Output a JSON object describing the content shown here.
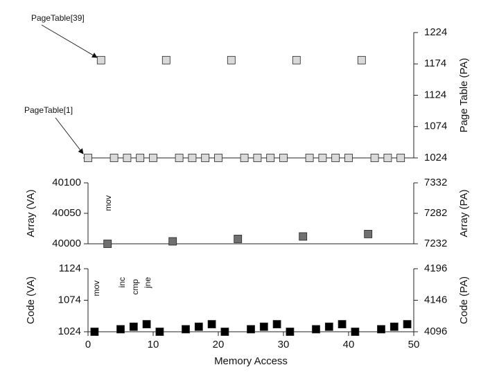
{
  "chart_data": [
    {
      "type": "scatter",
      "y2_label": "Page Table (PA)",
      "x": [
        0,
        2,
        4,
        6,
        8,
        10,
        12,
        14,
        16,
        18,
        20,
        22,
        24,
        26,
        28,
        30,
        32,
        34,
        36,
        38,
        40,
        42,
        44,
        46,
        48
      ],
      "series": [
        {
          "color": "#d9d9d9",
          "axis": "y2",
          "values": [
            1024,
            1180,
            1024,
            1024,
            1024,
            1024,
            1180,
            1024,
            1024,
            1024,
            1024,
            1180,
            1024,
            1024,
            1024,
            1024,
            1180,
            1024,
            1024,
            1024,
            1024,
            1180,
            1024,
            1024,
            1024
          ]
        }
      ],
      "xlim": [
        0,
        50
      ],
      "y2lim": [
        1024,
        1224
      ],
      "y2ticks": [
        1024,
        1074,
        1124,
        1174,
        1224
      ],
      "annotations": [
        "PageTable[39]",
        "PageTable[1]"
      ]
    },
    {
      "type": "scatter",
      "y_label": "Array (VA)",
      "y2_label": "Array (PA)",
      "x": [
        3,
        13,
        23,
        33,
        43
      ],
      "series": [
        {
          "color": "#707070",
          "values": [
            40000,
            40004,
            40008,
            40012,
            40016
          ]
        }
      ],
      "xlim": [
        0,
        50
      ],
      "ylim": [
        40000,
        40100
      ],
      "yticks": [
        40000,
        40050,
        40100
      ],
      "y2lim": [
        7232,
        7332
      ],
      "y2ticks": [
        7232,
        7282,
        7332
      ],
      "annotations": [
        "mov"
      ]
    },
    {
      "type": "scatter",
      "y_label": "Code (VA)",
      "y2_label": "Code (PA)",
      "x_label": "Memory Access",
      "x": [
        1,
        5,
        7,
        9,
        11,
        15,
        17,
        19,
        21,
        25,
        27,
        29,
        31,
        35,
        37,
        39,
        41,
        45,
        47,
        49
      ],
      "series": [
        {
          "color": "#000000",
          "values": [
            1024,
            1028,
            1032,
            1036,
            1024,
            1028,
            1032,
            1036,
            1024,
            1028,
            1032,
            1036,
            1024,
            1028,
            1032,
            1036,
            1024,
            1028,
            1032,
            1036
          ]
        }
      ],
      "xlim": [
        0,
        50
      ],
      "xticks": [
        0,
        10,
        20,
        30,
        40,
        50
      ],
      "ylim": [
        1024,
        1124
      ],
      "yticks": [
        1024,
        1074,
        1124
      ],
      "y2lim": [
        4096,
        4196
      ],
      "y2ticks": [
        4096,
        4146,
        4196
      ],
      "annotations": [
        "mov",
        "inc",
        "cmp",
        "jne"
      ]
    }
  ]
}
